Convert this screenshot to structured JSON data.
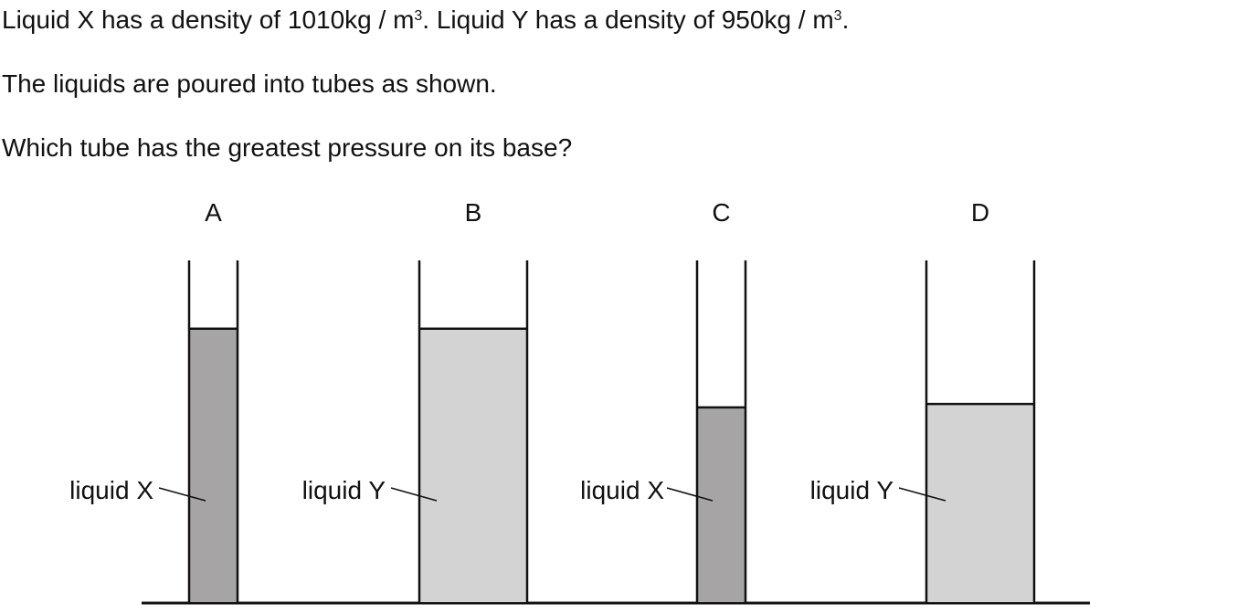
{
  "question": {
    "line1": {
      "part1": "Liquid X has a density of 1010",
      "unit1": "kg / m",
      "exp1": "3",
      "part2": ". Liquid Y has a density of 950",
      "unit2": "kg / m",
      "exp2": "3",
      "end": "."
    },
    "line2": "The liquids are poured into tubes as shown.",
    "line3": "Which tube has the greatest pressure on its base?"
  },
  "tubes": [
    {
      "letter": "A",
      "label": "liquid X",
      "liquid": "X",
      "liquid_fraction": 0.8,
      "width": "narrow"
    },
    {
      "letter": "B",
      "label": "liquid Y",
      "liquid": "Y",
      "liquid_fraction": 0.8,
      "width": "wide"
    },
    {
      "letter": "C",
      "label": "liquid X",
      "liquid": "X",
      "liquid_fraction": 0.57,
      "width": "narrow"
    },
    {
      "letter": "D",
      "label": "liquid Y",
      "liquid": "Y",
      "liquid_fraction": 0.58,
      "width": "wide"
    }
  ],
  "colors": {
    "liquid_X": "#a6a4a5",
    "liquid_Y": "#d3d3d3",
    "outline": "#111111"
  }
}
